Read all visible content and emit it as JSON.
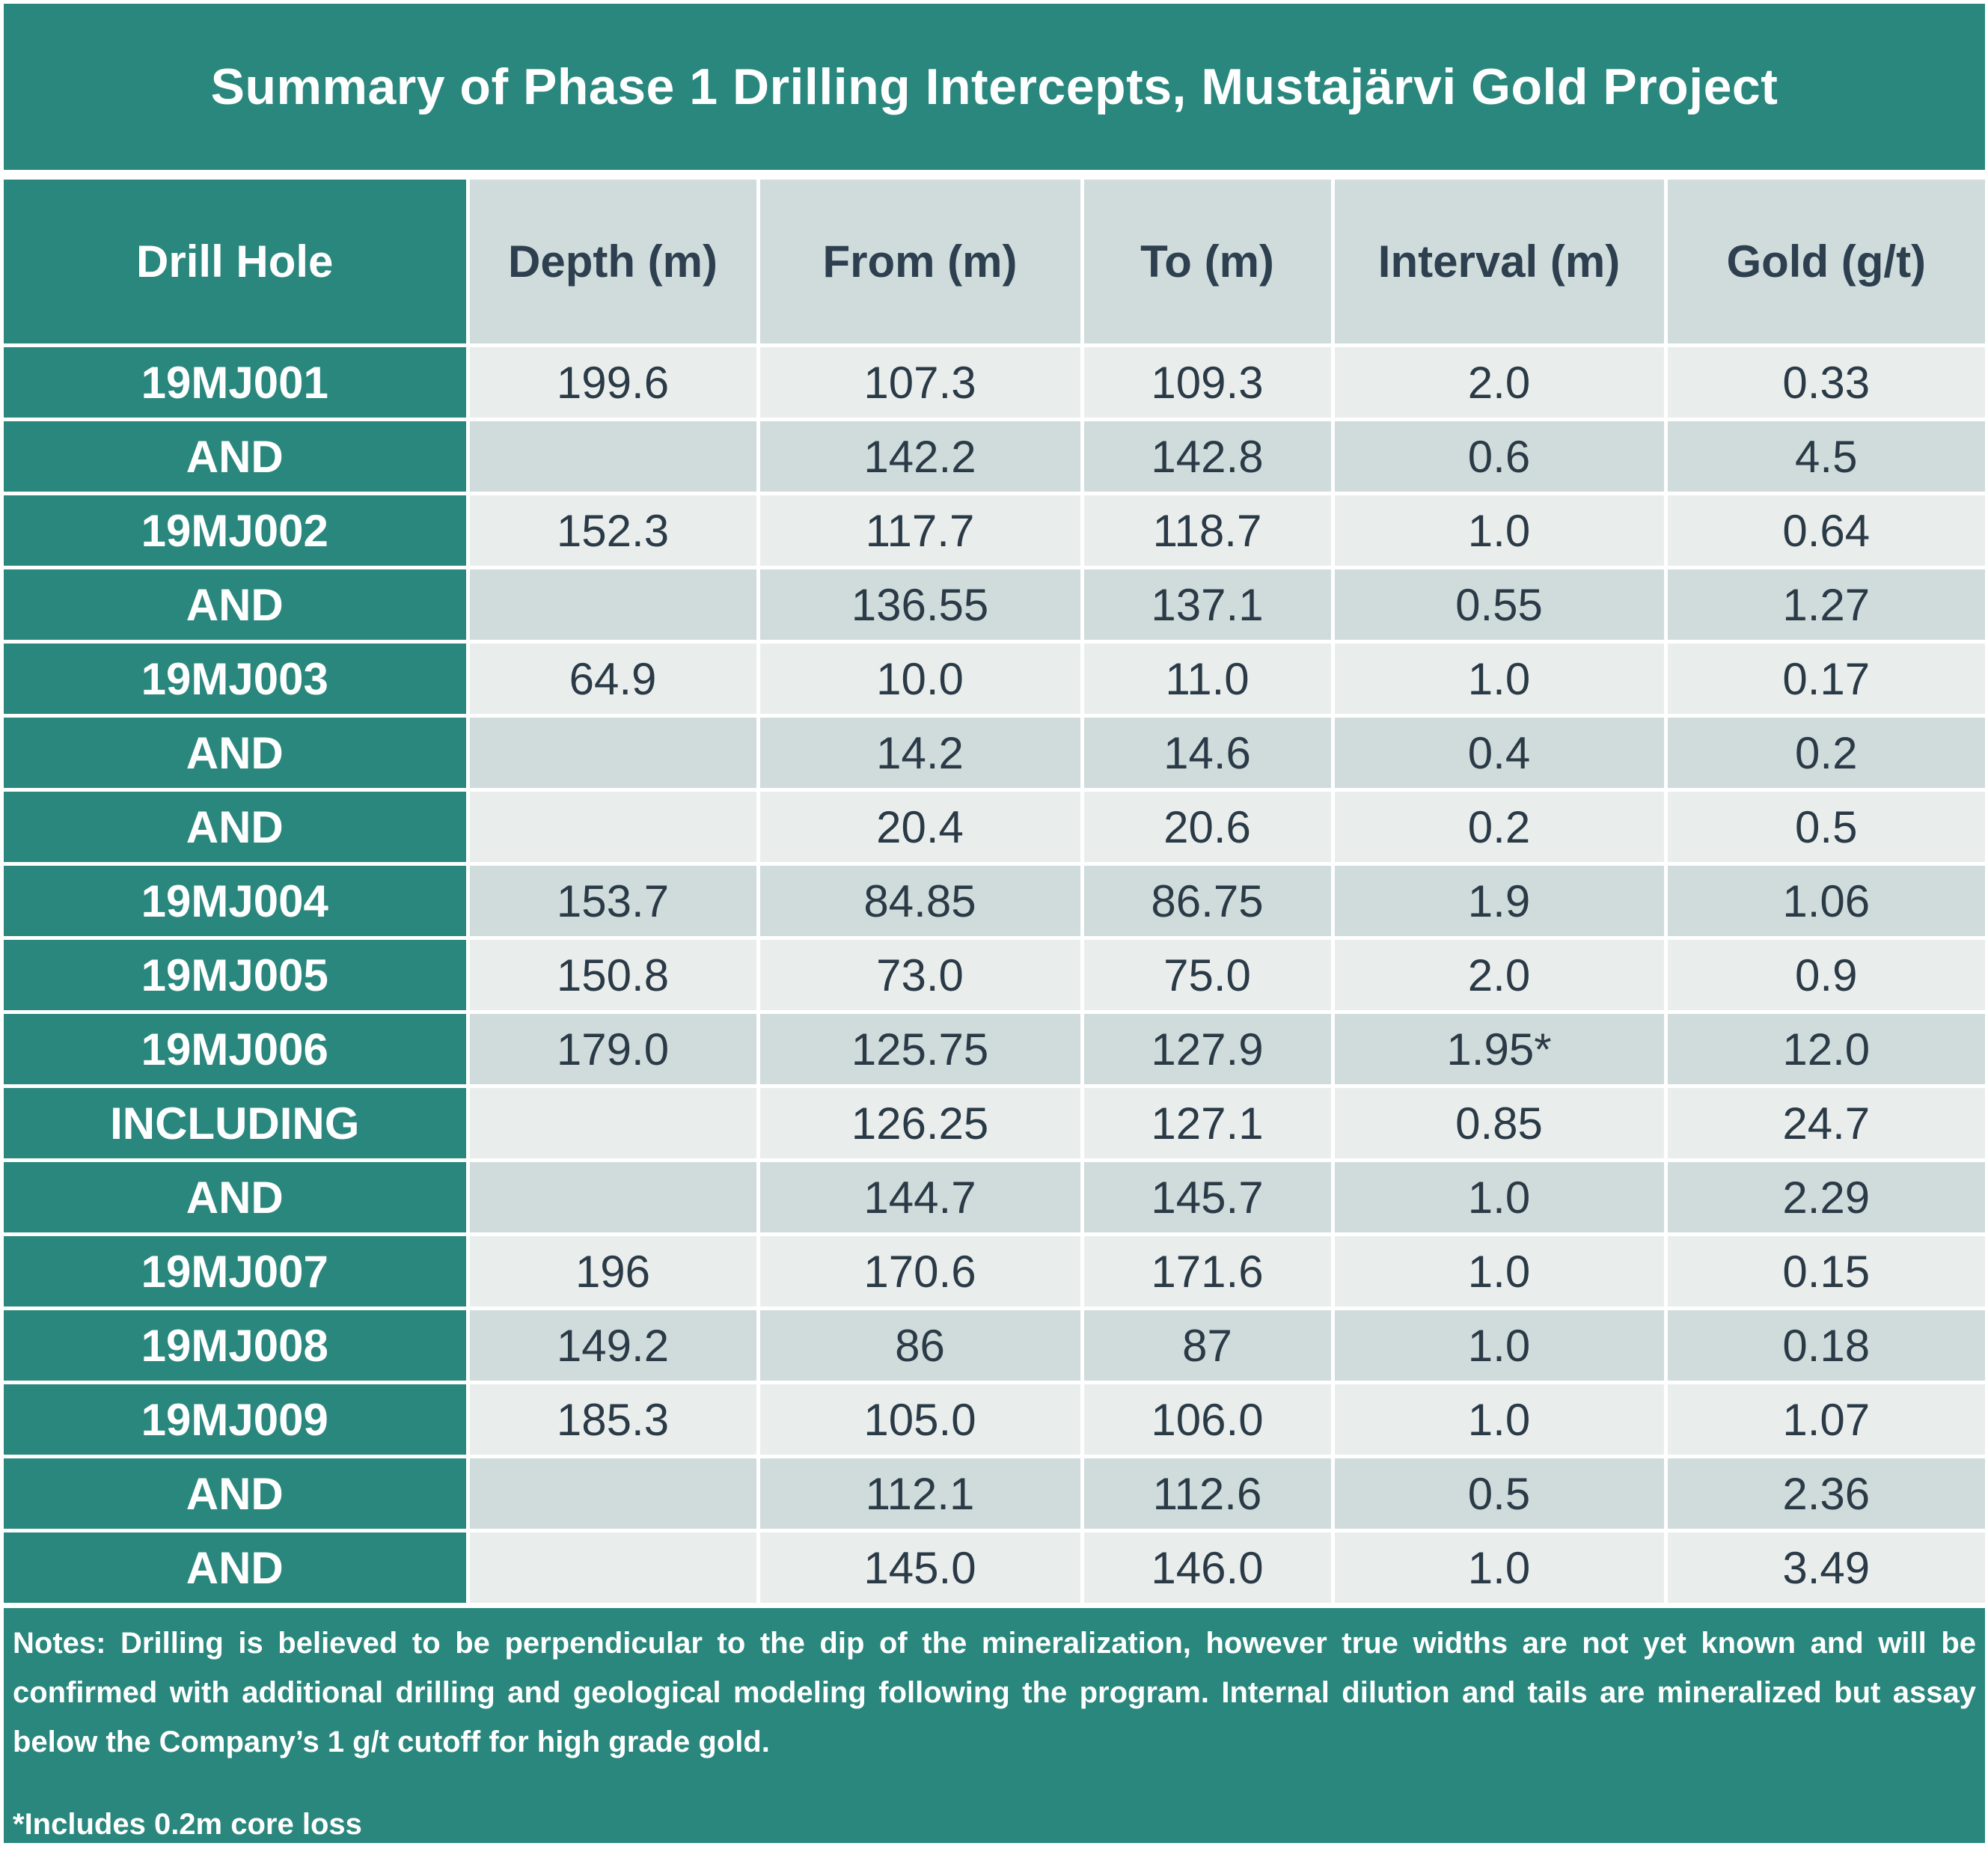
{
  "title": "Summary of Phase 1 Drilling Intercepts, Mustajärvi Gold Project",
  "headers": [
    "Drill Hole",
    "Depth (m)",
    "From (m)",
    "To (m)",
    "Interval (m)",
    "Gold (g/t)"
  ],
  "rows": [
    {
      "hole": "19MJ001",
      "depth": "199.6",
      "from": "107.3",
      "to": "109.3",
      "interval": "2.0",
      "gold": "0.33"
    },
    {
      "hole": "AND",
      "depth": "",
      "from": "142.2",
      "to": "142.8",
      "interval": "0.6",
      "gold": "4.5"
    },
    {
      "hole": "19MJ002",
      "depth": "152.3",
      "from": "117.7",
      "to": "118.7",
      "interval": "1.0",
      "gold": "0.64"
    },
    {
      "hole": "AND",
      "depth": "",
      "from": "136.55",
      "to": "137.1",
      "interval": "0.55",
      "gold": "1.27"
    },
    {
      "hole": "19MJ003",
      "depth": "64.9",
      "from": "10.0",
      "to": "11.0",
      "interval": "1.0",
      "gold": "0.17"
    },
    {
      "hole": "AND",
      "depth": "",
      "from": "14.2",
      "to": "14.6",
      "interval": "0.4",
      "gold": "0.2"
    },
    {
      "hole": "AND",
      "depth": "",
      "from": "20.4",
      "to": "20.6",
      "interval": "0.2",
      "gold": "0.5"
    },
    {
      "hole": "19MJ004",
      "depth": "153.7",
      "from": "84.85",
      "to": "86.75",
      "interval": "1.9",
      "gold": "1.06"
    },
    {
      "hole": "19MJ005",
      "depth": "150.8",
      "from": "73.0",
      "to": "75.0",
      "interval": "2.0",
      "gold": "0.9"
    },
    {
      "hole": "19MJ006",
      "depth": "179.0",
      "from": "125.75",
      "to": "127.9",
      "interval": "1.95*",
      "gold": "12.0"
    },
    {
      "hole": "INCLUDING",
      "depth": "",
      "from": "126.25",
      "to": "127.1",
      "interval": "0.85",
      "gold": "24.7"
    },
    {
      "hole": "AND",
      "depth": "",
      "from": "144.7",
      "to": "145.7",
      "interval": "1.0",
      "gold": "2.29"
    },
    {
      "hole": "19MJ007",
      "depth": "196",
      "from": "170.6",
      "to": "171.6",
      "interval": "1.0",
      "gold": "0.15"
    },
    {
      "hole": "19MJ008",
      "depth": "149.2",
      "from": "86",
      "to": "87",
      "interval": "1.0",
      "gold": "0.18"
    },
    {
      "hole": "19MJ009",
      "depth": "185.3",
      "from": "105.0",
      "to": "106.0",
      "interval": "1.0",
      "gold": "1.07"
    },
    {
      "hole": "AND",
      "depth": "",
      "from": "112.1",
      "to": "112.6",
      "interval": "0.5",
      "gold": "2.36"
    },
    {
      "hole": "AND",
      "depth": "",
      "from": "145.0",
      "to": "146.0",
      "interval": "1.0",
      "gold": "3.49"
    }
  ],
  "notes": {
    "body": "Notes:  Drilling is believed to be perpendicular to the dip of the mineralization, however true widths are not yet known and will be confirmed with additional drilling and geological modeling following the program. Internal dilution and tails are mineralized but assay below the Company’s 1 g/t cutoff for high grade gold.",
    "footnote": "*Includes 0.2m core loss"
  },
  "colors": {
    "teal": "#2a877d",
    "row_light": "#e9eeec",
    "row_dark": "#cfdcdb",
    "text_dark": "#2b3a47"
  }
}
